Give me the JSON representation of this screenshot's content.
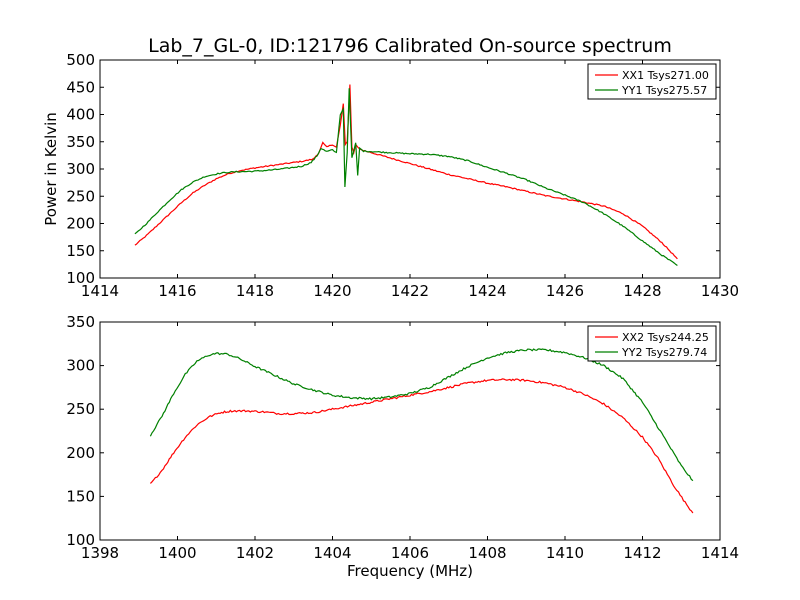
{
  "figure": {
    "title": "Lab_7_GL-0, ID:121796 Calibrated On-source spectrum",
    "xlabel": "Frequency (MHz)"
  },
  "chart_data": [
    {
      "type": "line",
      "ylabel": "Power in Kelvin",
      "xlabel": "",
      "xlim": [
        1414,
        1430
      ],
      "ylim": [
        100,
        500
      ],
      "xticks": [
        1414,
        1416,
        1418,
        1420,
        1422,
        1424,
        1426,
        1428,
        1430
      ],
      "yticks": [
        100,
        150,
        200,
        250,
        300,
        350,
        400,
        450,
        500
      ],
      "grid": false,
      "legend_position": "top-right",
      "series": [
        {
          "name": "XX1 Tsys271.00",
          "color": "#ff0000",
          "points": [
            [
              1414.9,
              160
            ],
            [
              1415.2,
              178
            ],
            [
              1415.5,
              198
            ],
            [
              1415.8,
              218
            ],
            [
              1416.1,
              238
            ],
            [
              1416.4,
              256
            ],
            [
              1416.7,
              270
            ],
            [
              1417.0,
              282
            ],
            [
              1417.3,
              291
            ],
            [
              1417.6,
              297
            ],
            [
              1418.0,
              302
            ],
            [
              1418.4,
              306
            ],
            [
              1418.8,
              310
            ],
            [
              1419.2,
              314
            ],
            [
              1419.5,
              318
            ],
            [
              1419.65,
              330
            ],
            [
              1419.75,
              348
            ],
            [
              1419.85,
              340
            ],
            [
              1420.0,
              345
            ],
            [
              1420.1,
              340
            ],
            [
              1420.2,
              380
            ],
            [
              1420.28,
              420
            ],
            [
              1420.33,
              345
            ],
            [
              1420.38,
              350
            ],
            [
              1420.45,
              455
            ],
            [
              1420.5,
              340
            ],
            [
              1420.55,
              330
            ],
            [
              1420.6,
              345
            ],
            [
              1420.65,
              340
            ],
            [
              1420.75,
              335
            ],
            [
              1421.0,
              330
            ],
            [
              1421.5,
              320
            ],
            [
              1422.0,
              310
            ],
            [
              1422.5,
              300
            ],
            [
              1423.0,
              290
            ],
            [
              1423.5,
              282
            ],
            [
              1424.0,
              274
            ],
            [
              1424.5,
              267
            ],
            [
              1425.0,
              259
            ],
            [
              1425.5,
              251
            ],
            [
              1426.0,
              245
            ],
            [
              1426.5,
              239
            ],
            [
              1427.0,
              232
            ],
            [
              1427.5,
              218
            ],
            [
              1428.0,
              195
            ],
            [
              1428.5,
              165
            ],
            [
              1428.9,
              135
            ]
          ]
        },
        {
          "name": "YY1 Tsys275.57",
          "color": "#008000",
          "points": [
            [
              1414.9,
              180
            ],
            [
              1415.2,
              200
            ],
            [
              1415.5,
              222
            ],
            [
              1415.8,
              243
            ],
            [
              1416.1,
              262
            ],
            [
              1416.4,
              276
            ],
            [
              1416.7,
              286
            ],
            [
              1417.0,
              291
            ],
            [
              1417.3,
              294
            ],
            [
              1417.6,
              295
            ],
            [
              1418.0,
              296
            ],
            [
              1418.4,
              298
            ],
            [
              1418.8,
              301
            ],
            [
              1419.2,
              305
            ],
            [
              1419.45,
              312
            ],
            [
              1419.6,
              324
            ],
            [
              1419.7,
              338
            ],
            [
              1419.85,
              332
            ],
            [
              1420.0,
              335
            ],
            [
              1420.1,
              330
            ],
            [
              1420.2,
              400
            ],
            [
              1420.28,
              410
            ],
            [
              1420.32,
              268
            ],
            [
              1420.38,
              330
            ],
            [
              1420.43,
              448
            ],
            [
              1420.5,
              320
            ],
            [
              1420.6,
              348
            ],
            [
              1420.65,
              288
            ],
            [
              1420.7,
              338
            ],
            [
              1420.8,
              333
            ],
            [
              1421.0,
              332
            ],
            [
              1421.5,
              330
            ],
            [
              1422.0,
              328
            ],
            [
              1422.5,
              327
            ],
            [
              1423.0,
              323
            ],
            [
              1423.5,
              315
            ],
            [
              1424.0,
              303
            ],
            [
              1424.5,
              292
            ],
            [
              1425.0,
              280
            ],
            [
              1425.5,
              265
            ],
            [
              1426.0,
              252
            ],
            [
              1426.5,
              238
            ],
            [
              1427.0,
              218
            ],
            [
              1427.5,
              195
            ],
            [
              1428.0,
              168
            ],
            [
              1428.5,
              142
            ],
            [
              1428.9,
              123
            ]
          ]
        }
      ]
    },
    {
      "type": "line",
      "ylabel": "",
      "xlabel": "Frequency (MHz)",
      "xlim": [
        1398,
        1414
      ],
      "ylim": [
        100,
        350
      ],
      "xticks": [
        1398,
        1400,
        1402,
        1404,
        1406,
        1408,
        1410,
        1412,
        1414
      ],
      "yticks": [
        100,
        150,
        200,
        250,
        300,
        350
      ],
      "grid": false,
      "legend_position": "top-right",
      "series": [
        {
          "name": "XX2 Tsys244.25",
          "color": "#ff0000",
          "points": [
            [
              1399.3,
              164
            ],
            [
              1399.6,
              180
            ],
            [
              1399.9,
              200
            ],
            [
              1400.2,
              218
            ],
            [
              1400.5,
              232
            ],
            [
              1400.8,
              241
            ],
            [
              1401.1,
              246
            ],
            [
              1401.4,
              248
            ],
            [
              1401.8,
              248
            ],
            [
              1402.2,
              247
            ],
            [
              1402.6,
              245
            ],
            [
              1403.0,
              245
            ],
            [
              1403.5,
              246
            ],
            [
              1404.0,
              250
            ],
            [
              1404.5,
              254
            ],
            [
              1405.0,
              258
            ],
            [
              1405.5,
              262
            ],
            [
              1406.0,
              266
            ],
            [
              1406.5,
              270
            ],
            [
              1407.0,
              275
            ],
            [
              1407.5,
              280
            ],
            [
              1408.0,
              283
            ],
            [
              1408.5,
              284
            ],
            [
              1409.0,
              283
            ],
            [
              1409.5,
              280
            ],
            [
              1410.0,
              275
            ],
            [
              1410.5,
              267
            ],
            [
              1411.0,
              256
            ],
            [
              1411.5,
              240
            ],
            [
              1412.0,
              218
            ],
            [
              1412.4,
              194
            ],
            [
              1412.8,
              163
            ],
            [
              1413.1,
              143
            ],
            [
              1413.3,
              131
            ]
          ]
        },
        {
          "name": "YY2 Tsys279.74",
          "color": "#008000",
          "points": [
            [
              1399.3,
              220
            ],
            [
              1399.6,
              242
            ],
            [
              1399.9,
              268
            ],
            [
              1400.2,
              290
            ],
            [
              1400.5,
              305
            ],
            [
              1400.8,
              312
            ],
            [
              1401.0,
              314
            ],
            [
              1401.3,
              313
            ],
            [
              1401.6,
              308
            ],
            [
              1402.0,
              299
            ],
            [
              1402.5,
              289
            ],
            [
              1403.0,
              279
            ],
            [
              1403.5,
              272
            ],
            [
              1404.0,
              266
            ],
            [
              1404.5,
              263
            ],
            [
              1405.0,
              262
            ],
            [
              1405.5,
              264
            ],
            [
              1406.0,
              268
            ],
            [
              1406.5,
              275
            ],
            [
              1407.0,
              287
            ],
            [
              1407.5,
              299
            ],
            [
              1408.0,
              309
            ],
            [
              1408.5,
              315
            ],
            [
              1409.0,
              318
            ],
            [
              1409.5,
              318
            ],
            [
              1410.0,
              315
            ],
            [
              1410.5,
              309
            ],
            [
              1411.0,
              300
            ],
            [
              1411.5,
              285
            ],
            [
              1412.0,
              258
            ],
            [
              1412.5,
              222
            ],
            [
              1413.0,
              185
            ],
            [
              1413.3,
              168
            ]
          ]
        }
      ]
    }
  ]
}
